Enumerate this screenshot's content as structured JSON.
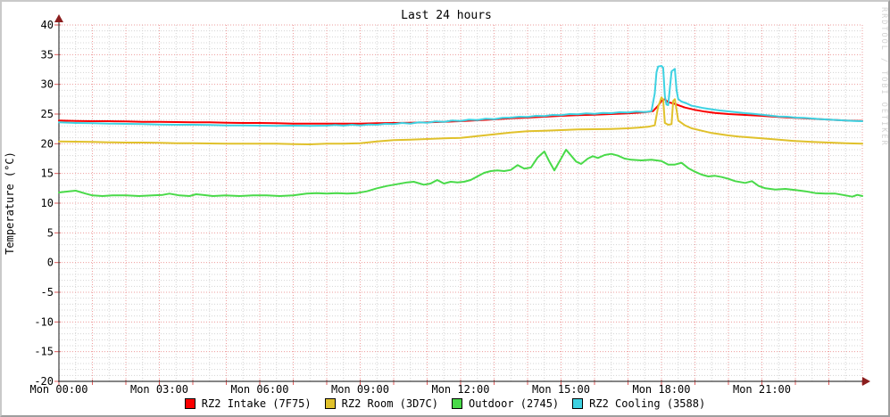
{
  "title": "Last 24 hours",
  "watermark": "RRDTOOL / TOBI OETIKER",
  "colors": {
    "background": "#ffffff",
    "grid_minor": "#d4d4d4",
    "grid_major": "#ee9c9c",
    "tick": "#e05a5a",
    "axis": "#3c3c3c",
    "arrow": "#8b1e1e",
    "watermark_text": "#d2d2d2",
    "text": "#000000"
  },
  "chart_data": {
    "type": "line",
    "title": "Last 24 hours",
    "xlabel": "",
    "ylabel": "Temperature (°C)",
    "x_unit": "hours since Mon 00:00",
    "xlim": [
      0,
      24
    ],
    "ylim": [
      -20,
      40
    ],
    "grid": "on",
    "legend_position": "bottom",
    "y_ticks": [
      40,
      35,
      30,
      25,
      20,
      15,
      10,
      5,
      0,
      -5,
      -10,
      -15,
      -20
    ],
    "x_ticks": [
      {
        "t": 0,
        "label": "Mon 00:00"
      },
      {
        "t": 3,
        "label": "Mon 03:00"
      },
      {
        "t": 6,
        "label": "Mon 06:00"
      },
      {
        "t": 9,
        "label": "Mon 09:00"
      },
      {
        "t": 12,
        "label": "Mon 12:00"
      },
      {
        "t": 15,
        "label": "Mon 15:00"
      },
      {
        "t": 18,
        "label": "Mon 18:00"
      },
      {
        "t": 21,
        "label": "Mon 21:00"
      }
    ],
    "series": [
      {
        "name": "RZ2 Intake (7F75)",
        "color": "#fa0000",
        "points": [
          [
            0,
            23.9
          ],
          [
            0.5,
            23.85
          ],
          [
            1,
            23.8
          ],
          [
            1.5,
            23.8
          ],
          [
            2,
            23.75
          ],
          [
            2.5,
            23.7
          ],
          [
            3,
            23.7
          ],
          [
            3.5,
            23.65
          ],
          [
            4,
            23.6
          ],
          [
            4.5,
            23.6
          ],
          [
            5,
            23.55
          ],
          [
            5.5,
            23.5
          ],
          [
            6,
            23.5
          ],
          [
            6.5,
            23.45
          ],
          [
            7,
            23.4
          ],
          [
            7.5,
            23.4
          ],
          [
            8,
            23.4
          ],
          [
            8.5,
            23.4
          ],
          [
            9,
            23.4
          ],
          [
            9.5,
            23.45
          ],
          [
            10,
            23.5
          ],
          [
            10.5,
            23.55
          ],
          [
            11,
            23.6
          ],
          [
            11.5,
            23.7
          ],
          [
            12,
            23.8
          ],
          [
            12.5,
            23.95
          ],
          [
            13,
            24.1
          ],
          [
            13.5,
            24.3
          ],
          [
            14,
            24.4
          ],
          [
            14.5,
            24.55
          ],
          [
            15,
            24.7
          ],
          [
            15.5,
            24.8
          ],
          [
            16,
            24.9
          ],
          [
            16.5,
            25.0
          ],
          [
            17,
            25.1
          ],
          [
            17.5,
            25.3
          ],
          [
            17.75,
            25.5
          ],
          [
            17.9,
            26.4
          ],
          [
            18.0,
            27.2
          ],
          [
            18.1,
            27.5
          ],
          [
            18.2,
            27.0
          ],
          [
            18.35,
            26.8
          ],
          [
            18.5,
            26.5
          ],
          [
            18.7,
            26.1
          ],
          [
            19,
            25.7
          ],
          [
            19.3,
            25.4
          ],
          [
            19.6,
            25.2
          ],
          [
            20,
            25.0
          ],
          [
            20.5,
            24.85
          ],
          [
            21,
            24.7
          ],
          [
            21.5,
            24.5
          ],
          [
            22,
            24.35
          ],
          [
            22.5,
            24.2
          ],
          [
            23,
            24.05
          ],
          [
            23.5,
            23.9
          ],
          [
            24,
            23.85
          ]
        ]
      },
      {
        "name": "RZ2 Room (3D7C)",
        "color": "#e0c12b",
        "points": [
          [
            0,
            20.4
          ],
          [
            0.5,
            20.35
          ],
          [
            1,
            20.3
          ],
          [
            1.5,
            20.25
          ],
          [
            2,
            20.2
          ],
          [
            2.5,
            20.2
          ],
          [
            3,
            20.15
          ],
          [
            3.5,
            20.1
          ],
          [
            4,
            20.1
          ],
          [
            4.5,
            20.05
          ],
          [
            5,
            20.0
          ],
          [
            5.5,
            20.0
          ],
          [
            6,
            20.0
          ],
          [
            6.5,
            20.0
          ],
          [
            7,
            19.95
          ],
          [
            7.5,
            19.9
          ],
          [
            8,
            20.0
          ],
          [
            8.5,
            20.0
          ],
          [
            9,
            20.1
          ],
          [
            9.5,
            20.4
          ],
          [
            10,
            20.6
          ],
          [
            10.5,
            20.7
          ],
          [
            11,
            20.8
          ],
          [
            11.5,
            20.9
          ],
          [
            12,
            21.0
          ],
          [
            12.5,
            21.3
          ],
          [
            13,
            21.6
          ],
          [
            13.5,
            21.9
          ],
          [
            14,
            22.1
          ],
          [
            14.5,
            22.2
          ],
          [
            15,
            22.3
          ],
          [
            15.5,
            22.4
          ],
          [
            16,
            22.45
          ],
          [
            16.5,
            22.5
          ],
          [
            17,
            22.6
          ],
          [
            17.3,
            22.7
          ],
          [
            17.6,
            22.85
          ],
          [
            17.8,
            23.1
          ],
          [
            17.9,
            26.2
          ],
          [
            18.0,
            27.8
          ],
          [
            18.05,
            27.4
          ],
          [
            18.1,
            23.5
          ],
          [
            18.2,
            23.2
          ],
          [
            18.3,
            23.3
          ],
          [
            18.35,
            27.2
          ],
          [
            18.4,
            27.5
          ],
          [
            18.5,
            23.9
          ],
          [
            18.7,
            23.1
          ],
          [
            18.9,
            22.6
          ],
          [
            19.2,
            22.2
          ],
          [
            19.5,
            21.8
          ],
          [
            20,
            21.4
          ],
          [
            20.3,
            21.2
          ],
          [
            21,
            20.9
          ],
          [
            21.5,
            20.7
          ],
          [
            22,
            20.45
          ],
          [
            22.5,
            20.3
          ],
          [
            23,
            20.2
          ],
          [
            23.5,
            20.1
          ],
          [
            24,
            20.0
          ]
        ]
      },
      {
        "name": "Outdoor (2745)",
        "color": "#49da49",
        "points": [
          [
            0,
            11.8
          ],
          [
            0.3,
            12.0
          ],
          [
            0.5,
            12.1
          ],
          [
            0.8,
            11.6
          ],
          [
            1,
            11.3
          ],
          [
            1.3,
            11.2
          ],
          [
            1.6,
            11.3
          ],
          [
            2,
            11.3
          ],
          [
            2.4,
            11.2
          ],
          [
            2.8,
            11.3
          ],
          [
            3.1,
            11.4
          ],
          [
            3.3,
            11.6
          ],
          [
            3.6,
            11.3
          ],
          [
            3.9,
            11.2
          ],
          [
            4.1,
            11.5
          ],
          [
            4.3,
            11.4
          ],
          [
            4.6,
            11.2
          ],
          [
            5,
            11.3
          ],
          [
            5.4,
            11.2
          ],
          [
            5.8,
            11.3
          ],
          [
            6.2,
            11.3
          ],
          [
            6.6,
            11.2
          ],
          [
            7,
            11.3
          ],
          [
            7.4,
            11.6
          ],
          [
            7.7,
            11.7
          ],
          [
            8,
            11.6
          ],
          [
            8.3,
            11.7
          ],
          [
            8.6,
            11.6
          ],
          [
            8.9,
            11.7
          ],
          [
            9.2,
            12.0
          ],
          [
            9.5,
            12.5
          ],
          [
            9.8,
            12.9
          ],
          [
            10.1,
            13.2
          ],
          [
            10.4,
            13.5
          ],
          [
            10.6,
            13.6
          ],
          [
            10.9,
            13.1
          ],
          [
            11.1,
            13.3
          ],
          [
            11.3,
            13.9
          ],
          [
            11.5,
            13.3
          ],
          [
            11.7,
            13.6
          ],
          [
            11.9,
            13.5
          ],
          [
            12.1,
            13.6
          ],
          [
            12.3,
            13.9
          ],
          [
            12.5,
            14.5
          ],
          [
            12.7,
            15.1
          ],
          [
            12.9,
            15.4
          ],
          [
            13.1,
            15.5
          ],
          [
            13.3,
            15.4
          ],
          [
            13.5,
            15.6
          ],
          [
            13.7,
            16.4
          ],
          [
            13.9,
            15.8
          ],
          [
            14.1,
            16.0
          ],
          [
            14.3,
            17.7
          ],
          [
            14.5,
            18.7
          ],
          [
            14.65,
            17.0
          ],
          [
            14.8,
            15.5
          ],
          [
            15.0,
            17.5
          ],
          [
            15.15,
            19.0
          ],
          [
            15.3,
            18.0
          ],
          [
            15.45,
            17.0
          ],
          [
            15.6,
            16.6
          ],
          [
            15.8,
            17.5
          ],
          [
            15.95,
            17.9
          ],
          [
            16.1,
            17.6
          ],
          [
            16.3,
            18.1
          ],
          [
            16.5,
            18.3
          ],
          [
            16.7,
            18.0
          ],
          [
            16.9,
            17.5
          ],
          [
            17.1,
            17.3
          ],
          [
            17.4,
            17.2
          ],
          [
            17.7,
            17.3
          ],
          [
            18.0,
            17.1
          ],
          [
            18.2,
            16.5
          ],
          [
            18.4,
            16.5
          ],
          [
            18.6,
            16.8
          ],
          [
            18.8,
            15.9
          ],
          [
            19.0,
            15.3
          ],
          [
            19.2,
            14.8
          ],
          [
            19.4,
            14.5
          ],
          [
            19.6,
            14.6
          ],
          [
            19.8,
            14.4
          ],
          [
            20.0,
            14.1
          ],
          [
            20.2,
            13.7
          ],
          [
            20.5,
            13.4
          ],
          [
            20.7,
            13.7
          ],
          [
            20.9,
            12.9
          ],
          [
            21.1,
            12.5
          ],
          [
            21.4,
            12.3
          ],
          [
            21.7,
            12.4
          ],
          [
            22.0,
            12.2
          ],
          [
            22.3,
            12.0
          ],
          [
            22.6,
            11.7
          ],
          [
            22.9,
            11.6
          ],
          [
            23.2,
            11.6
          ],
          [
            23.5,
            11.3
          ],
          [
            23.7,
            11.1
          ],
          [
            23.85,
            11.4
          ],
          [
            24,
            11.2
          ]
        ]
      },
      {
        "name": "RZ2 Cooling (3588)",
        "color": "#3ed2e2",
        "points": [
          [
            0,
            23.6
          ],
          [
            0.5,
            23.5
          ],
          [
            1,
            23.45
          ],
          [
            1.5,
            23.4
          ],
          [
            2,
            23.35
          ],
          [
            2.5,
            23.3
          ],
          [
            3,
            23.25
          ],
          [
            3.5,
            23.2
          ],
          [
            4,
            23.2
          ],
          [
            4.5,
            23.15
          ],
          [
            5,
            23.1
          ],
          [
            5.5,
            23.1
          ],
          [
            6,
            23.05
          ],
          [
            6.5,
            23.0
          ],
          [
            7,
            23.05
          ],
          [
            7.5,
            23.0
          ],
          [
            8,
            23.05
          ],
          [
            8.25,
            23.15
          ],
          [
            8.5,
            23.05
          ],
          [
            8.75,
            23.2
          ],
          [
            9,
            23.1
          ],
          [
            9.25,
            23.25
          ],
          [
            9.5,
            23.2
          ],
          [
            9.75,
            23.35
          ],
          [
            10,
            23.3
          ],
          [
            10.25,
            23.5
          ],
          [
            10.5,
            23.4
          ],
          [
            10.75,
            23.6
          ],
          [
            11,
            23.55
          ],
          [
            11.25,
            23.75
          ],
          [
            11.5,
            23.7
          ],
          [
            11.75,
            23.9
          ],
          [
            12,
            23.85
          ],
          [
            12.25,
            24.05
          ],
          [
            12.5,
            24.0
          ],
          [
            12.75,
            24.2
          ],
          [
            13,
            24.15
          ],
          [
            13.25,
            24.35
          ],
          [
            13.5,
            24.4
          ],
          [
            13.75,
            24.55
          ],
          [
            14,
            24.5
          ],
          [
            14.25,
            24.7
          ],
          [
            14.5,
            24.65
          ],
          [
            14.75,
            24.85
          ],
          [
            15,
            24.8
          ],
          [
            15.25,
            25.0
          ],
          [
            15.5,
            24.95
          ],
          [
            15.75,
            25.1
          ],
          [
            16,
            25.05
          ],
          [
            16.25,
            25.2
          ],
          [
            16.5,
            25.15
          ],
          [
            16.75,
            25.3
          ],
          [
            17,
            25.25
          ],
          [
            17.25,
            25.4
          ],
          [
            17.5,
            25.35
          ],
          [
            17.7,
            25.5
          ],
          [
            17.8,
            28.5
          ],
          [
            17.85,
            32.0
          ],
          [
            17.9,
            33.0
          ],
          [
            18.0,
            33.1
          ],
          [
            18.05,
            32.8
          ],
          [
            18.1,
            28.0
          ],
          [
            18.15,
            26.6
          ],
          [
            18.2,
            26.5
          ],
          [
            18.3,
            32.2
          ],
          [
            18.4,
            32.6
          ],
          [
            18.45,
            29.0
          ],
          [
            18.5,
            27.5
          ],
          [
            18.6,
            27.1
          ],
          [
            18.75,
            26.8
          ],
          [
            18.9,
            26.4
          ],
          [
            19,
            26.3
          ],
          [
            19.25,
            26.0
          ],
          [
            19.5,
            25.8
          ],
          [
            19.75,
            25.6
          ],
          [
            20,
            25.45
          ],
          [
            20.25,
            25.3
          ],
          [
            20.5,
            25.15
          ],
          [
            20.75,
            25.05
          ],
          [
            21,
            24.9
          ],
          [
            21.25,
            24.75
          ],
          [
            21.5,
            24.6
          ],
          [
            21.75,
            24.55
          ],
          [
            22,
            24.4
          ],
          [
            22.25,
            24.35
          ],
          [
            22.5,
            24.25
          ],
          [
            22.75,
            24.15
          ],
          [
            23,
            24.05
          ],
          [
            23.25,
            24.0
          ],
          [
            23.5,
            23.9
          ],
          [
            23.75,
            23.85
          ],
          [
            24,
            23.8
          ]
        ]
      }
    ]
  }
}
